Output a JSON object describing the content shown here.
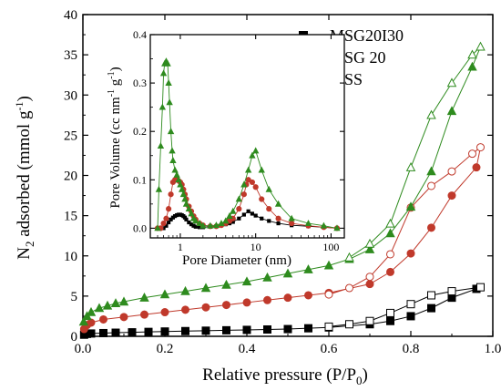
{
  "chart_data": {
    "type": "scatter",
    "main": {
      "xlabel": "Relative pressure (P/P",
      "xlabel_sub": "0",
      "xlabel_close": ")",
      "ylabel": "N",
      "ylabel_sub": "2",
      "ylabel_rest": " adsorbed (mmol g",
      "ylabel_sup": "-1",
      "ylabel_close": ")",
      "xlim": [
        0.0,
        1.0
      ],
      "ylim": [
        0,
        40
      ],
      "xticks": [
        "0.0",
        "0.2",
        "0.4",
        "0.6",
        "0.8",
        "1.0"
      ],
      "yticks": [
        "0",
        "5",
        "10",
        "15",
        "20",
        "25",
        "30",
        "35",
        "40"
      ],
      "legend_position": "top-right",
      "series": [
        {
          "name": "MSG20I30",
          "color": "#000000",
          "marker": "square",
          "adsorption": {
            "x": [
              0.003,
              0.01,
              0.02,
              0.05,
              0.08,
              0.12,
              0.16,
              0.2,
              0.25,
              0.3,
              0.35,
              0.4,
              0.45,
              0.5,
              0.55,
              0.6,
              0.7,
              0.75,
              0.8,
              0.85,
              0.9,
              0.96
            ],
            "y": [
              0.2,
              0.3,
              0.35,
              0.4,
              0.45,
              0.5,
              0.55,
              0.6,
              0.65,
              0.7,
              0.75,
              0.8,
              0.85,
              0.9,
              1.0,
              1.1,
              1.5,
              1.9,
              2.5,
              3.5,
              4.8,
              5.9
            ]
          },
          "desorption": {
            "x": [
              0.97,
              0.9,
              0.85,
              0.8,
              0.75,
              0.7,
              0.65,
              0.6
            ],
            "y": [
              6.1,
              5.6,
              5.1,
              4.0,
              2.9,
              1.9,
              1.5,
              1.2
            ]
          }
        },
        {
          "name": "MSG 20",
          "color": "#c0392b",
          "marker": "circle",
          "adsorption": {
            "x": [
              0.003,
              0.01,
              0.02,
              0.05,
              0.1,
              0.15,
              0.2,
              0.25,
              0.3,
              0.35,
              0.4,
              0.45,
              0.5,
              0.55,
              0.6,
              0.7,
              0.75,
              0.8,
              0.85,
              0.9,
              0.96
            ],
            "y": [
              0.9,
              1.4,
              1.7,
              2.1,
              2.4,
              2.7,
              3.0,
              3.3,
              3.6,
              3.9,
              4.2,
              4.5,
              4.8,
              5.1,
              5.4,
              6.5,
              8.0,
              10.3,
              13.5,
              17.5,
              21.0
            ]
          },
          "desorption": {
            "x": [
              0.97,
              0.95,
              0.9,
              0.85,
              0.8,
              0.75,
              0.7,
              0.65,
              0.6
            ],
            "y": [
              23.5,
              22.7,
              20.5,
              18.7,
              16.0,
              10.2,
              7.4,
              6.0,
              5.2
            ]
          }
        },
        {
          "name": "MSS",
          "color": "#2e8b1e",
          "marker": "triangle",
          "adsorption": {
            "x": [
              0.002,
              0.01,
              0.02,
              0.04,
              0.06,
              0.08,
              0.1,
              0.15,
              0.2,
              0.25,
              0.3,
              0.35,
              0.4,
              0.45,
              0.5,
              0.55,
              0.6,
              0.65,
              0.7,
              0.75,
              0.8,
              0.85,
              0.9,
              0.95
            ],
            "y": [
              1.8,
              2.5,
              3.0,
              3.5,
              3.8,
              4.1,
              4.3,
              4.8,
              5.2,
              5.6,
              6.0,
              6.4,
              6.8,
              7.3,
              7.8,
              8.3,
              8.8,
              9.6,
              10.8,
              12.8,
              16.1,
              20.5,
              28.0,
              33.5
            ]
          },
          "desorption": {
            "x": [
              0.97,
              0.95,
              0.9,
              0.85,
              0.8,
              0.75,
              0.7,
              0.65
            ],
            "y": [
              36.0,
              35.0,
              31.5,
              27.5,
              21.0,
              14.0,
              11.5,
              9.8
            ]
          }
        }
      ]
    },
    "inset": {
      "xlabel": "Pore Diameter (nm)",
      "ylabel": "Pore Volume (cc nm",
      "ylabel_sup1": "-1",
      "ylabel_mid": " g",
      "ylabel_sup2": "-1",
      "ylabel_close": ")",
      "xscale": "log",
      "xlim": [
        0.4,
        150
      ],
      "ylim": [
        -0.02,
        0.4
      ],
      "xticks": [
        {
          "value": 1,
          "label": "1"
        },
        {
          "value": 10,
          "label": "10"
        },
        {
          "value": 100,
          "label": "100"
        }
      ],
      "yticks": [
        "0.0",
        "0.1",
        "0.2",
        "0.3",
        "0.4"
      ],
      "series": [
        {
          "name": "MSG20I30",
          "color": "#000000",
          "marker": "square",
          "x": [
            0.5,
            0.55,
            0.6,
            0.65,
            0.7,
            0.75,
            0.8,
            0.85,
            0.9,
            0.95,
            1.0,
            1.05,
            1.1,
            1.15,
            1.2,
            1.3,
            1.4,
            1.5,
            1.6,
            1.8,
            2.0,
            2.5,
            3.0,
            3.5,
            4.0,
            4.5,
            5.0,
            6.0,
            7.0,
            8.0,
            9.0,
            10.0,
            12.0,
            15.0,
            20.0,
            30.0,
            50.0,
            80.0,
            120.0
          ],
          "y": [
            0.0,
            0.0,
            0.0,
            0.005,
            0.012,
            0.018,
            0.022,
            0.025,
            0.027,
            0.028,
            0.028,
            0.027,
            0.025,
            0.022,
            0.018,
            0.012,
            0.008,
            0.005,
            0.003,
            0.002,
            0.002,
            0.003,
            0.004,
            0.006,
            0.008,
            0.01,
            0.013,
            0.02,
            0.028,
            0.035,
            0.03,
            0.026,
            0.02,
            0.015,
            0.01,
            0.006,
            0.004,
            0.002,
            0.0
          ]
        },
        {
          "name": "MSG 20",
          "color": "#c0392b",
          "marker": "circle",
          "x": [
            0.5,
            0.55,
            0.6,
            0.65,
            0.7,
            0.75,
            0.8,
            0.85,
            0.9,
            0.95,
            1.0,
            1.05,
            1.1,
            1.15,
            1.2,
            1.3,
            1.4,
            1.5,
            1.6,
            1.8,
            2.0,
            2.5,
            3.0,
            3.5,
            4.0,
            4.5,
            5.0,
            6.0,
            7.0,
            7.5,
            8.0,
            9.0,
            10.0,
            12.0,
            15.0,
            20.0,
            30.0,
            50.0,
            80.0,
            120.0
          ],
          "y": [
            0.0,
            0.0,
            0.01,
            0.02,
            0.04,
            0.07,
            0.095,
            0.1,
            0.1,
            0.098,
            0.095,
            0.09,
            0.08,
            0.07,
            0.06,
            0.045,
            0.035,
            0.025,
            0.018,
            0.01,
            0.006,
            0.004,
            0.004,
            0.006,
            0.01,
            0.015,
            0.02,
            0.04,
            0.07,
            0.09,
            0.1,
            0.095,
            0.085,
            0.06,
            0.04,
            0.02,
            0.01,
            0.005,
            0.002,
            0.0
          ]
        },
        {
          "name": "MSS",
          "color": "#2e8b1e",
          "marker": "triangle",
          "x": [
            0.5,
            0.52,
            0.55,
            0.58,
            0.6,
            0.62,
            0.65,
            0.68,
            0.7,
            0.72,
            0.75,
            0.78,
            0.8,
            0.85,
            0.9,
            0.95,
            1.0,
            1.05,
            1.1,
            1.15,
            1.2,
            1.3,
            1.4,
            1.5,
            1.6,
            1.8,
            2.0,
            2.5,
            3.0,
            3.5,
            4.0,
            4.5,
            5.0,
            6.0,
            7.0,
            8.0,
            9.0,
            10.0,
            12.0,
            15.0,
            20.0,
            30.0,
            50.0,
            80.0,
            120.0
          ],
          "y": [
            0.0,
            0.08,
            0.17,
            0.25,
            0.32,
            0.34,
            0.345,
            0.34,
            0.3,
            0.26,
            0.2,
            0.16,
            0.14,
            0.12,
            0.11,
            0.1,
            0.09,
            0.08,
            0.07,
            0.06,
            0.05,
            0.04,
            0.03,
            0.02,
            0.015,
            0.01,
            0.005,
            0.005,
            0.006,
            0.01,
            0.015,
            0.025,
            0.035,
            0.06,
            0.09,
            0.12,
            0.15,
            0.16,
            0.12,
            0.08,
            0.05,
            0.02,
            0.01,
            0.005,
            0.0
          ]
        }
      ]
    }
  }
}
